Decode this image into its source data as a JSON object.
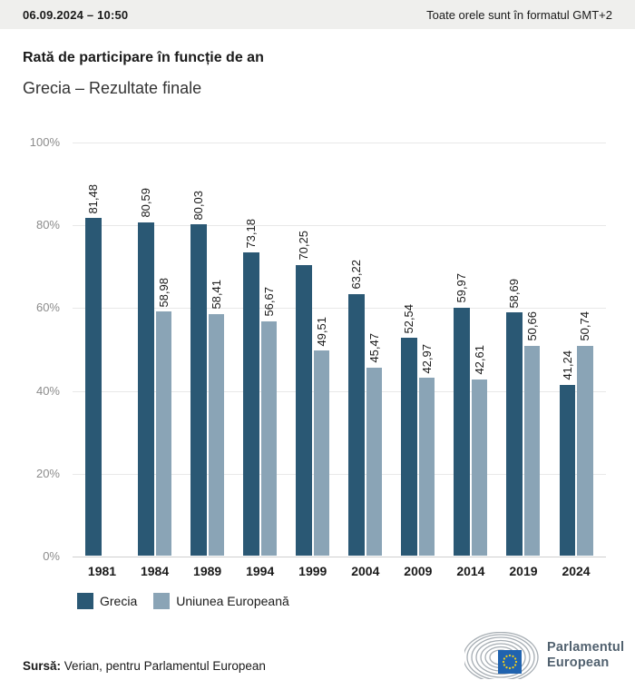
{
  "header": {
    "datetime": "06.09.2024 – 10:50",
    "timezone_note": "Toate orele sunt în formatul GMT+2"
  },
  "title": "Rată de participare în funcție de an",
  "subtitle": "Grecia – Rezultate finale",
  "chart_data": {
    "type": "bar",
    "title": "Rată de participare în funcție de an",
    "subtitle": "Grecia – Rezultate finale",
    "categories": [
      "1981",
      "1984",
      "1989",
      "1994",
      "1999",
      "2004",
      "2009",
      "2014",
      "2019",
      "2024"
    ],
    "series": [
      {
        "name": "Grecia",
        "color": "#2a5874",
        "values": [
          81.48,
          80.59,
          80.03,
          73.18,
          70.25,
          63.22,
          52.54,
          59.97,
          58.69,
          41.24
        ],
        "labels": [
          "81,48",
          "80,59",
          "80,03",
          "73,18",
          "70,25",
          "63,22",
          "52,54",
          "59,97",
          "58,69",
          "41,24"
        ]
      },
      {
        "name": "Uniunea Europeană",
        "color": "#8aa4b6",
        "values": [
          null,
          58.98,
          58.41,
          56.67,
          49.51,
          45.47,
          42.97,
          42.61,
          50.66,
          50.74
        ],
        "labels": [
          null,
          "58,98",
          "58,41",
          "56,67",
          "49,51",
          "45,47",
          "42,97",
          "42,61",
          "50,66",
          "50,74"
        ]
      }
    ],
    "ylim": [
      0,
      100
    ],
    "yticks": [
      {
        "value": 0,
        "label": "0%"
      },
      {
        "value": 20,
        "label": "20%"
      },
      {
        "value": 40,
        "label": "40%"
      },
      {
        "value": 60,
        "label": "60%"
      },
      {
        "value": 80,
        "label": "80%"
      },
      {
        "value": 100,
        "label": "100%"
      }
    ],
    "grid": true,
    "legend_position": "bottom",
    "value_label_rotation": 90
  },
  "footer": {
    "source_label": "Sursă:",
    "source_text": "Verian, pentru Parlamentul European",
    "logo_line1": "Parlamentul",
    "logo_line2": "European"
  }
}
